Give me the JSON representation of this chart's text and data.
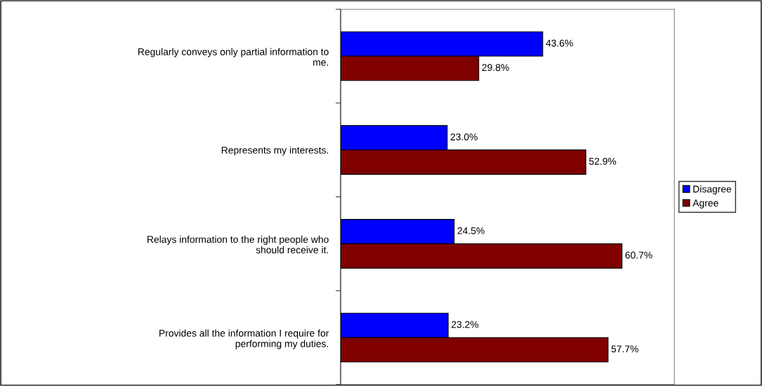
{
  "chart_data": {
    "type": "bar",
    "orientation": "horizontal",
    "categories": [
      "Regularly conveys only partial information to\nme.",
      "Represents my interests.",
      "Relays information to the right people who\nshould receive it.",
      "Provides all the information I require for\nperforming my duties."
    ],
    "series": [
      {
        "name": "Disagree",
        "color": "#0000ff",
        "values": [
          43.6,
          23.0,
          24.5,
          23.2
        ],
        "value_labels": [
          "43.6%",
          "23.0%",
          "24.5%",
          "23.2%"
        ]
      },
      {
        "name": "Agree",
        "color": "#800000",
        "values": [
          29.8,
          52.9,
          60.7,
          57.7
        ],
        "value_labels": [
          "29.8%",
          "52.9%",
          "60.7%",
          "57.7%"
        ]
      }
    ],
    "xlim": [
      0,
      72
    ],
    "tick_labels": "y",
    "legend": "right",
    "grid": false
  }
}
